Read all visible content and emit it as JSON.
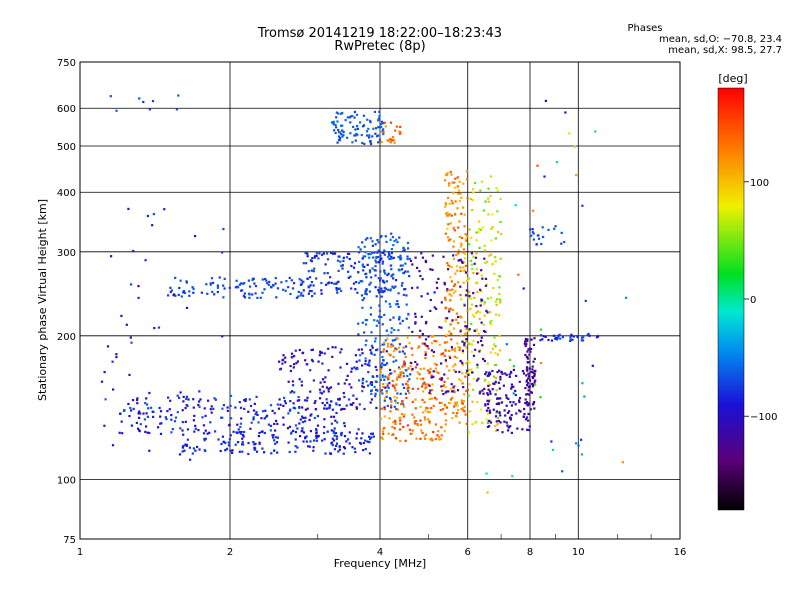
{
  "header": {
    "title_line1": "Tromsø 20141219 18:22:00–18:23:43",
    "title_line2": "RwPretec (8p)",
    "stats_title": "Phases",
    "stats_line1": "mean, sd,O: −70.8, 23.4",
    "stats_line2": "mean, sd,X:  98.5, 27.7"
  },
  "colorbar": {
    "label": "[deg]",
    "min": -180,
    "max": 180,
    "ticks": [
      {
        "v": 100,
        "label": "100"
      },
      {
        "v": 0,
        "label": "0"
      },
      {
        "v": -100,
        "label": "−100"
      }
    ]
  },
  "chart_data": {
    "type": "scatter",
    "title": "Tromsø 20141219 18:22:00–18:23:43",
    "subtitle": "RwPretec (8p)",
    "xlabel": "Frequency [MHz]",
    "ylabel": "Stationary phase Virtual Height [km]",
    "xscale": "log",
    "yscale": "log",
    "xlim": [
      1,
      16
    ],
    "ylim": [
      75,
      750
    ],
    "grid": true,
    "xticks": [
      {
        "v": 1,
        "label": "1"
      },
      {
        "v": 2,
        "label": "2"
      },
      {
        "v": 4,
        "label": "4"
      },
      {
        "v": 6,
        "label": "6"
      },
      {
        "v": 8,
        "label": "8"
      },
      {
        "v": 10,
        "label": "10"
      },
      {
        "v": 16,
        "label": "16"
      }
    ],
    "yticks": [
      {
        "v": 75,
        "label": "75"
      },
      {
        "v": 100,
        "label": "100"
      },
      {
        "v": 200,
        "label": "200"
      },
      {
        "v": 300,
        "label": "300"
      },
      {
        "v": 400,
        "label": "400"
      },
      {
        "v": 500,
        "label": "500"
      },
      {
        "v": 600,
        "label": "600"
      },
      {
        "v": 750,
        "label": "750"
      }
    ],
    "grid_x": [
      2,
      4,
      6,
      8,
      10
    ],
    "grid_y": [
      100,
      200,
      300,
      400,
      500,
      600
    ],
    "phase_range": [
      -180,
      180
    ],
    "clusters": [
      {
        "x": [
          1.6,
          3.9
        ],
        "y": [
          113,
          128
        ],
        "phase": [
          -95,
          -70
        ],
        "n": 180
      },
      {
        "x": [
          1.2,
          3.5
        ],
        "y": [
          125,
          150
        ],
        "phase": [
          -110,
          -60
        ],
        "n": 220
      },
      {
        "x": [
          2.5,
          4.2
        ],
        "y": [
          140,
          190
        ],
        "phase": [
          -125,
          -70
        ],
        "n": 160
      },
      {
        "x": [
          1.5,
          3.0
        ],
        "y": [
          240,
          265
        ],
        "phase": [
          -80,
          -60
        ],
        "n": 110
      },
      {
        "x": [
          2.8,
          4.5
        ],
        "y": [
          245,
          300
        ],
        "phase": [
          -95,
          -60
        ],
        "n": 160
      },
      {
        "x": [
          3.6,
          4.6
        ],
        "y": [
          140,
          330
        ],
        "phase": [
          -75,
          -50
        ],
        "n": 230
      },
      {
        "x": [
          3.2,
          4.1
        ],
        "y": [
          505,
          590
        ],
        "phase": [
          -75,
          -55
        ],
        "n": 90
      },
      {
        "x": [
          4.0,
          4.4
        ],
        "y": [
          500,
          560
        ],
        "phase": [
          110,
          160
        ],
        "n": 20
      },
      {
        "x": [
          4.0,
          5.4
        ],
        "y": [
          120,
          200
        ],
        "phase": [
          100,
          160
        ],
        "n": 230
      },
      {
        "x": [
          5.4,
          6.0
        ],
        "y": [
          130,
          450
        ],
        "phase": [
          90,
          150
        ],
        "n": 220
      },
      {
        "x": [
          6.0,
          7.0
        ],
        "y": [
          125,
          440
        ],
        "phase": [
          40,
          110
        ],
        "n": 170
      },
      {
        "x": [
          6.5,
          8.0
        ],
        "y": [
          125,
          170
        ],
        "phase": [
          -120,
          -100
        ],
        "n": 130
      },
      {
        "x": [
          4.6,
          6.6
        ],
        "y": [
          150,
          300
        ],
        "phase": [
          -130,
          -100
        ],
        "n": 150
      },
      {
        "x": [
          7.8,
          8.2
        ],
        "y": [
          140,
          200
        ],
        "phase": [
          -130,
          -110
        ],
        "n": 70
      },
      {
        "x": [
          8.2,
          11.0
        ],
        "y": [
          195,
          202
        ],
        "phase": [
          -100,
          -60
        ],
        "n": 35
      },
      {
        "x": [
          1.1,
          2.0
        ],
        "y": [
          110,
          420
        ],
        "phase": [
          -120,
          -60
        ],
        "n": 50
      },
      {
        "x": [
          1.1,
          1.6
        ],
        "y": [
          590,
          640
        ],
        "phase": [
          -80,
          -60
        ],
        "n": 8
      },
      {
        "x": [
          8.0,
          9.5
        ],
        "y": [
          310,
          340
        ],
        "phase": [
          -80,
          -60
        ],
        "n": 20
      },
      {
        "x": [
          6.5,
          12.5
        ],
        "y": [
          90,
          650
        ],
        "phase": [
          -120,
          160
        ],
        "n": 40
      }
    ]
  }
}
